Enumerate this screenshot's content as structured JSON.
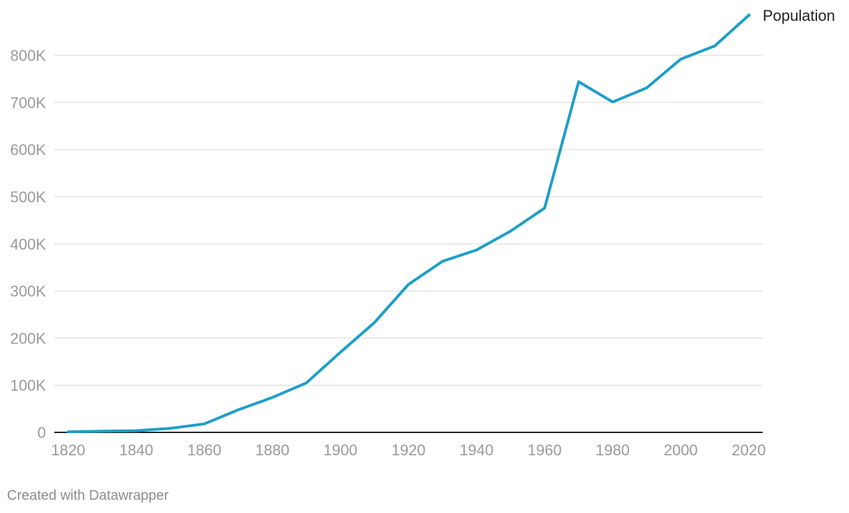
{
  "chart_data": {
    "type": "line",
    "x": [
      1820,
      1830,
      1840,
      1850,
      1860,
      1870,
      1880,
      1890,
      1900,
      1910,
      1920,
      1930,
      1940,
      1950,
      1960,
      1970,
      1980,
      1990,
      2000,
      2010,
      2020
    ],
    "series": [
      {
        "name": "Population",
        "values": [
          1000,
          2500,
          3500,
          8500,
          18000,
          48000,
          74000,
          105000,
          170000,
          233000,
          314000,
          363000,
          387000,
          427000,
          476000,
          744000,
          701000,
          731000,
          792000,
          820000,
          885000
        ],
        "color": "#1d9ec7"
      }
    ],
    "x_ticks": [
      1820,
      1840,
      1860,
      1880,
      1900,
      1920,
      1940,
      1960,
      1980,
      2000,
      2020
    ],
    "x_tick_labels": [
      "1820",
      "1840",
      "1860",
      "1880",
      "1900",
      "1920",
      "1940",
      "1960",
      "1980",
      "2000",
      "2020"
    ],
    "y_ticks": [
      0,
      100000,
      200000,
      300000,
      400000,
      500000,
      600000,
      700000,
      800000
    ],
    "y_tick_labels": [
      "0",
      "100K",
      "200K",
      "300K",
      "400K",
      "500K",
      "600K",
      "700K",
      "800K"
    ],
    "xlim": [
      1820,
      2020
    ],
    "ylim": [
      0,
      885000
    ],
    "grid": true,
    "legend": "inline-end-label",
    "title": "",
    "xlabel": "",
    "ylabel": ""
  },
  "footer": {
    "credit": "Created with Datawrapper"
  },
  "colors": {
    "gridline": "#e3e3e3",
    "axis": "#222222",
    "tick_text": "#9a9a9a"
  }
}
